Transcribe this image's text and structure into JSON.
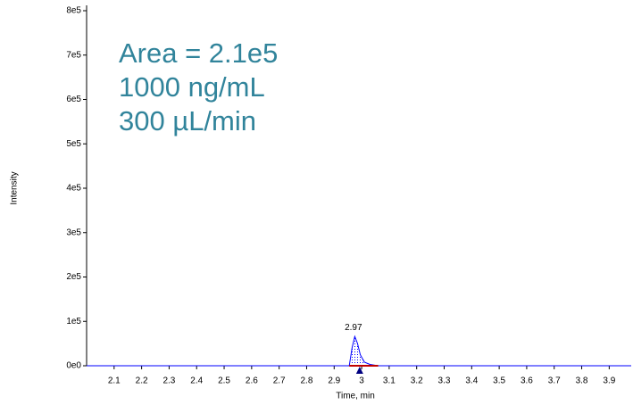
{
  "chart_data": {
    "type": "line",
    "xlabel": "Time, min",
    "ylabel": "Intensity",
    "annotations": [
      "Area = 2.1e5",
      "1000 ng/mL",
      "300 µL/min"
    ],
    "annotation_color": "#31849b",
    "peak_label": {
      "x": 2.97,
      "y": 66000,
      "label": "2.97"
    },
    "series": [
      {
        "color": "#0000ff",
        "x": [
          2.0,
          2.955,
          2.965,
          2.975,
          2.985,
          2.995,
          3.01,
          3.03,
          3.06,
          3.98
        ],
        "values": [
          0,
          0,
          40000,
          66000,
          50000,
          25000,
          8000,
          3000,
          0,
          0
        ]
      }
    ],
    "xlim": [
      2.0,
      3.98
    ],
    "xticks": [
      2.1,
      2.2,
      2.3,
      2.4,
      2.5,
      2.6,
      2.7,
      2.8,
      2.9,
      3.0,
      3.1,
      3.2,
      3.3,
      3.4,
      3.5,
      3.6,
      3.7,
      3.8,
      3.9
    ],
    "ylim": [
      0,
      800000
    ],
    "yticks": [
      {
        "value": 0,
        "label": "0e0"
      },
      {
        "value": 100000,
        "label": "1e5"
      },
      {
        "value": 200000,
        "label": "2e5"
      },
      {
        "value": 300000,
        "label": "3e5"
      },
      {
        "value": 400000,
        "label": "4e5"
      },
      {
        "value": 500000,
        "label": "5e5"
      },
      {
        "value": 600000,
        "label": "6e5"
      },
      {
        "value": 700000,
        "label": "7e5"
      },
      {
        "value": 800000,
        "label": "8e5"
      }
    ]
  }
}
